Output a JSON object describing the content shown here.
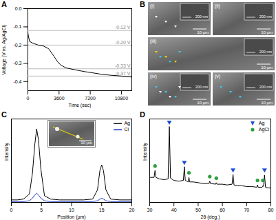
{
  "chart_data": [
    {
      "type": "line",
      "panel_label": "A",
      "x_label": "Time (sec)",
      "y_label": "Voltage (V vs. Ag/AgCl)",
      "x": [
        0,
        60,
        200,
        600,
        1200,
        1800,
        2400,
        3000,
        3400,
        3800,
        4400,
        5400,
        6500,
        7200,
        8500,
        9500,
        10800,
        12000
      ],
      "values": [
        -0.13,
        -0.15,
        -0.18,
        -0.19,
        -0.2,
        -0.205,
        -0.22,
        -0.26,
        -0.29,
        -0.31,
        -0.325,
        -0.335,
        -0.345,
        -0.35,
        -0.36,
        -0.365,
        -0.37,
        -0.375
      ],
      "color": "#000000",
      "xlim": [
        0,
        12000
      ],
      "xticks": [
        0,
        3600,
        7200,
        10800
      ],
      "ylim": [
        -0.45,
        0
      ],
      "yticks": [
        {
          "value": 0,
          "label": "0.0"
        },
        -0.1,
        -0.2,
        -0.3,
        -0.4
      ],
      "annotations": [
        {
          "value": -0.12,
          "label": "-0.12 V"
        },
        {
          "value": -0.2,
          "label": "-0.20 V"
        },
        {
          "value": -0.33,
          "label": "-0.33 V"
        },
        {
          "value": -0.37,
          "label": "-0.37 V"
        }
      ]
    },
    {
      "type": "image",
      "panel_label": "B",
      "panels": [
        {
          "label": "(i)",
          "inset_scale": "200 nm",
          "scale": "10 µm"
        },
        {
          "label": "(ii)",
          "inset_scale": "200 nm",
          "scale": "10 µm"
        },
        {
          "label": "(iii)",
          "inset_scale": "200 nm",
          "scale": "10 µm"
        },
        {
          "label": "(iv)",
          "inset_scale": "200 nm",
          "scale": "10 µm"
        },
        {
          "label": "(v)",
          "inset_scale": "200 nm",
          "scale": "10 µm"
        }
      ]
    },
    {
      "type": "line",
      "panel_label": "C",
      "x_label": "Position (µm)",
      "y_label": "Intensity",
      "x": [
        0,
        1,
        2,
        3,
        3.5,
        3.9,
        4.2,
        4.5,
        4.9,
        5.5,
        6.5,
        8,
        10,
        12,
        13.5,
        14.3,
        14.7,
        15,
        15.3,
        15.7,
        16.5,
        18,
        20
      ],
      "series": [
        {
          "name": "Ag",
          "color": "#000000",
          "values": [
            0.03,
            0.03,
            0.04,
            0.1,
            0.35,
            0.7,
            0.88,
            0.75,
            0.4,
            0.08,
            0.04,
            0.03,
            0.03,
            0.03,
            0.04,
            0.15,
            0.38,
            0.45,
            0.38,
            0.15,
            0.04,
            0.03,
            0.03
          ]
        },
        {
          "name": "Cl",
          "color": "#1f3cc4",
          "values": [
            0.01,
            0.01,
            0.01,
            0.02,
            0.05,
            0.09,
            0.11,
            0.09,
            0.05,
            0.02,
            0.01,
            0.01,
            0.01,
            0.01,
            0.01,
            0.02,
            0.04,
            0.05,
            0.04,
            0.02,
            0.01,
            0.01,
            0.01
          ]
        }
      ],
      "xlim": [
        0,
        20
      ],
      "xticks": [
        0,
        5,
        10,
        15,
        20
      ],
      "ylim": [
        0,
        1
      ],
      "tick_labels": "x",
      "legend": "top-right",
      "inset": {
        "scale": "10 µm"
      }
    },
    {
      "type": "line",
      "panel_label": "D",
      "x_label": "2θ (deg.)",
      "y_label": "Intensity",
      "x": [
        30,
        31,
        31.8,
        32.2,
        32.6,
        34,
        36,
        37.6,
        38.1,
        38.6,
        40,
        42,
        43.9,
        44.3,
        44.7,
        45.9,
        46.2,
        46.5,
        48,
        50,
        52,
        54.5,
        54.8,
        55.1,
        57.2,
        57.5,
        57.8,
        60,
        62,
        64,
        64.4,
        64.8,
        66,
        67.3,
        67.5,
        67.8,
        70,
        72,
        74.2,
        74.5,
        74.8,
        76.4,
        76.7,
        77,
        77.4,
        77.8,
        79,
        80
      ],
      "values": [
        0.33,
        0.33,
        0.33,
        0.42,
        0.33,
        0.31,
        0.3,
        0.31,
        1.0,
        0.32,
        0.29,
        0.28,
        0.29,
        0.47,
        0.29,
        0.27,
        0.33,
        0.27,
        0.27,
        0.26,
        0.25,
        0.25,
        0.28,
        0.25,
        0.24,
        0.26,
        0.24,
        0.24,
        0.23,
        0.24,
        0.37,
        0.23,
        0.22,
        0.22,
        0.23,
        0.22,
        0.21,
        0.21,
        0.2,
        0.23,
        0.2,
        0.2,
        0.22,
        0.21,
        0.36,
        0.2,
        0.19,
        0.19
      ],
      "color": "#000000",
      "series": [
        {
          "name": "Ag",
          "type": "scatter",
          "marker": "triangle-down",
          "color": "#1f4fd1",
          "x": [
            38.1,
            44.3,
            64.4,
            77.4
          ],
          "values": [
            1.06,
            0.53,
            0.43,
            0.43
          ]
        },
        {
          "name": "AgCl",
          "type": "scatter",
          "marker": "circle",
          "color": "#2e9e3e",
          "x": [
            32.2,
            46.2,
            54.8,
            57.5,
            74.5,
            76.7
          ],
          "values": [
            0.48,
            0.39,
            0.34,
            0.32,
            0.29,
            0.29
          ]
        }
      ],
      "xlim": [
        30,
        80
      ],
      "xticks": [
        30,
        40,
        50,
        60,
        70,
        80
      ],
      "ylim": [
        0,
        1.1
      ],
      "tick_labels": "x",
      "legend": "top-right"
    }
  ]
}
